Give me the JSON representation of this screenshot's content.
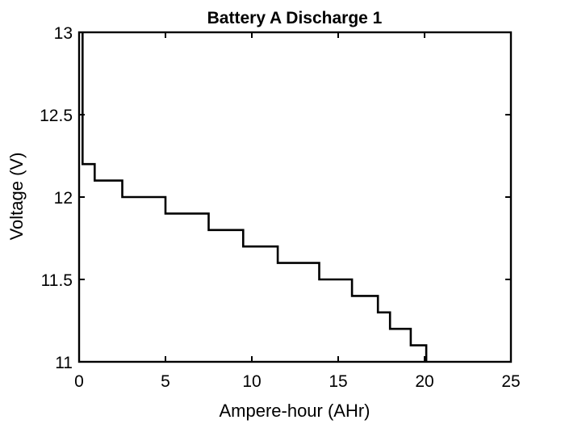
{
  "chart_data": {
    "type": "line",
    "title": "Battery A Discharge 1",
    "xlabel": "Ampere-hour (AHr)",
    "ylabel": "Voltage (V)",
    "xlim": [
      0,
      25
    ],
    "ylim": [
      11,
      13
    ],
    "xticks": [
      0,
      5,
      10,
      15,
      20,
      25
    ],
    "xtick_labels": [
      "0",
      "5",
      "10",
      "15",
      "20",
      "25"
    ],
    "yticks": [
      11,
      11.5,
      12,
      12.5,
      13
    ],
    "ytick_labels": [
      "11",
      "11.5",
      "12",
      "12.5",
      "13"
    ],
    "grid": false,
    "line_color": "#000000",
    "series": [
      {
        "x": [
          0.2,
          0.2,
          0.2,
          0.9,
          0.9,
          2.5,
          2.5,
          5.0,
          5.0,
          7.5,
          7.5,
          9.5,
          9.5,
          11.5,
          11.5,
          13.9,
          13.9,
          15.8,
          15.8,
          17.3,
          17.3,
          18.0,
          18.0,
          19.2,
          19.2,
          20.1,
          20.1
        ],
        "y": [
          13.0,
          12.5,
          12.2,
          12.2,
          12.1,
          12.1,
          12.0,
          12.0,
          11.9,
          11.9,
          11.8,
          11.8,
          11.7,
          11.7,
          11.6,
          11.6,
          11.5,
          11.5,
          11.4,
          11.4,
          11.3,
          11.3,
          11.2,
          11.2,
          11.1,
          11.1,
          11.0
        ]
      }
    ]
  }
}
